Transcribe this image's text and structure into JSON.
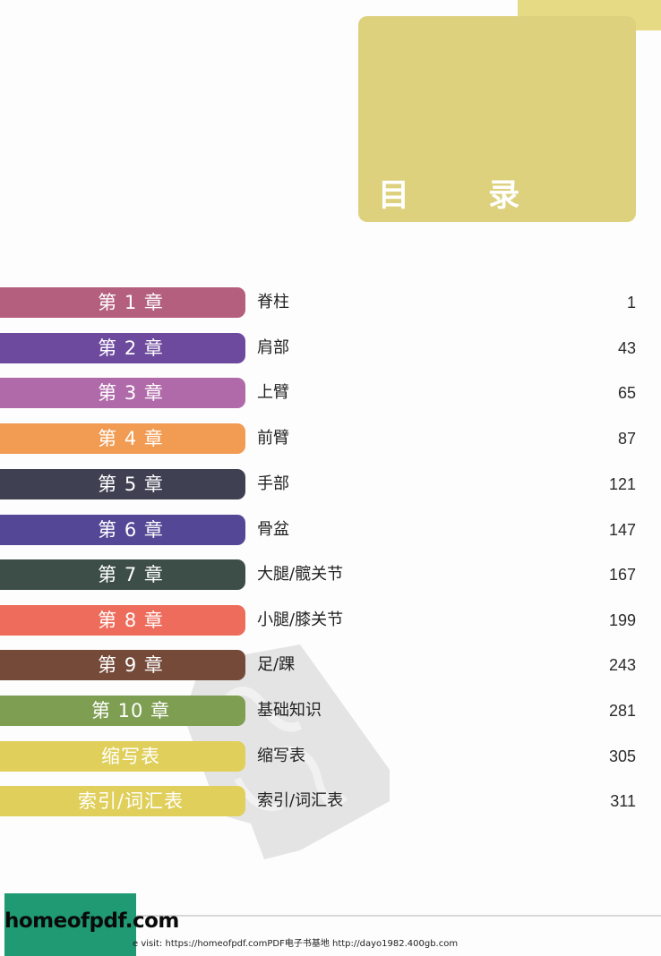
{
  "header": {
    "title": "目  录",
    "colors": {
      "tab": "#e6db84",
      "title_box": "#ddd17e"
    }
  },
  "toc": {
    "entries": [
      {
        "chapter": "第 1 章",
        "topic": "脊柱",
        "page": "1",
        "color": "#b45f7e"
      },
      {
        "chapter": "第 2 章",
        "topic": "肩部",
        "page": "43",
        "color": "#6d4a9e"
      },
      {
        "chapter": "第 3 章",
        "topic": "上臂",
        "page": "65",
        "color": "#b06aaa"
      },
      {
        "chapter": "第 4 章",
        "topic": "前臂",
        "page": "87",
        "color": "#f29b52"
      },
      {
        "chapter": "第 5 章",
        "topic": "手部",
        "page": "121",
        "color": "#3f4153"
      },
      {
        "chapter": "第 6 章",
        "topic": "骨盆",
        "page": "147",
        "color": "#544896"
      },
      {
        "chapter": "第 7 章",
        "topic": "大腿/髋关节",
        "page": "167",
        "color": "#3c4e47"
      },
      {
        "chapter": "第 8 章",
        "topic": "小腿/膝关节",
        "page": "199",
        "color": "#ee6c5b"
      },
      {
        "chapter": "第 9 章",
        "topic": "足/踝",
        "page": "243",
        "color": "#754a39"
      },
      {
        "chapter": "第 10 章",
        "topic": "基础知识",
        "page": "281",
        "color": "#7e9e52"
      },
      {
        "chapter": "缩写表",
        "topic": "缩写表",
        "page": "305",
        "color": "#e0cf5a"
      },
      {
        "chapter": "索引/词汇表",
        "topic": "索引/词汇表",
        "page": "311",
        "color": "#e0cf5a"
      }
    ]
  },
  "footer": {
    "logo": "homeofpdf.com",
    "url_text": "e visit: https://homeofpdf.com",
    "site_text": "PDF电子书基地 http://dayo1982.400gb.com",
    "colors": {
      "logo_bg": "#1f9a72"
    }
  }
}
